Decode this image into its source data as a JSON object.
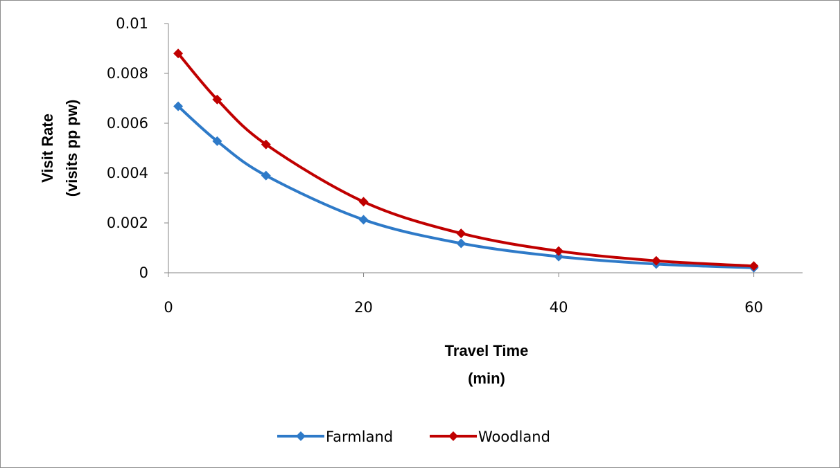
{
  "chart_data": {
    "type": "line",
    "title": "",
    "xlabel": [
      "Travel Time",
      "(min)"
    ],
    "ylabel": [
      "Visit Rate",
      "(visits pp pw)"
    ],
    "xlim": [
      0,
      65
    ],
    "ylim": [
      0,
      0.01
    ],
    "xticks": [
      0,
      20,
      40,
      60
    ],
    "yticks": [
      0,
      0.002,
      0.004,
      0.006,
      0.008,
      0.01
    ],
    "ytick_labels": [
      "0",
      "0.002",
      "0.004",
      "0.006",
      "0.008",
      "0.01"
    ],
    "xtick_labels": [
      "0",
      "20",
      "40",
      "60"
    ],
    "grid": false,
    "legend_position": "bottom",
    "x": [
      1,
      5,
      10,
      20,
      30,
      40,
      50,
      60
    ],
    "series": [
      {
        "name": "Farmland",
        "color": "#2e7ac8",
        "marker": "diamond",
        "values": [
          0.00668,
          0.00528,
          0.0039,
          0.00213,
          0.00118,
          0.00065,
          0.00035,
          0.0002
        ]
      },
      {
        "name": "Woodland",
        "color": "#c00000",
        "marker": "diamond",
        "values": [
          0.0088,
          0.00695,
          0.00515,
          0.00285,
          0.00158,
          0.00087,
          0.00048,
          0.00027
        ]
      }
    ]
  }
}
